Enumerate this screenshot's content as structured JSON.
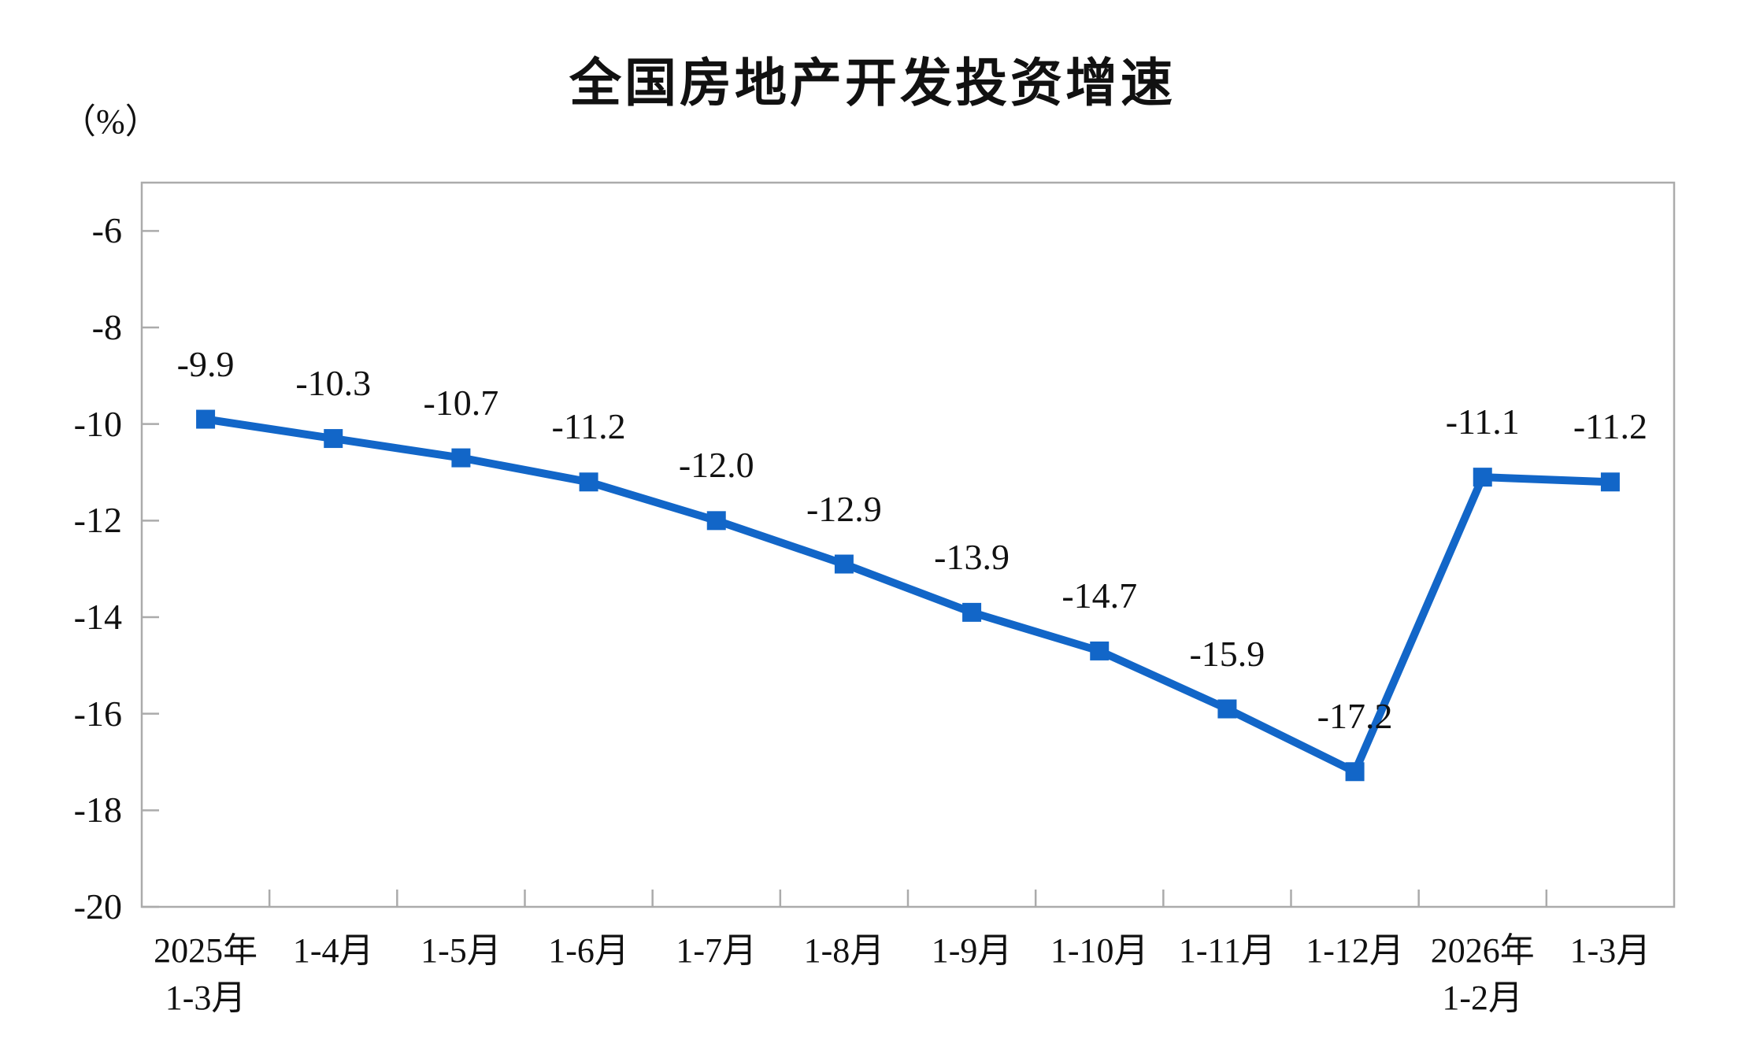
{
  "chart_data": {
    "type": "line",
    "title": "全国房地产开发投资增速",
    "unit_label": "（%）",
    "categories": [
      [
        "2025年",
        "1-3月"
      ],
      [
        "1-4月"
      ],
      [
        "1-5月"
      ],
      [
        "1-6月"
      ],
      [
        "1-7月"
      ],
      [
        "1-8月"
      ],
      [
        "1-9月"
      ],
      [
        "1-10月"
      ],
      [
        "1-11月"
      ],
      [
        "1-12月"
      ],
      [
        "2026年",
        "1-2月"
      ],
      [
        "1-3月"
      ]
    ],
    "values": [
      -9.9,
      -10.3,
      -10.7,
      -11.2,
      -12.0,
      -12.9,
      -13.9,
      -14.7,
      -15.9,
      -17.2,
      -11.1,
      -11.2
    ],
    "data_labels": [
      "-9.9",
      "-10.3",
      "-10.7",
      "-11.2",
      "-12.0",
      "-12.9",
      "-13.9",
      "-14.7",
      "-15.9",
      "-17.2",
      "-11.1",
      "-11.2"
    ],
    "ytick_labels": [
      "-6",
      "-8",
      "-10",
      "-12",
      "-14",
      "-16",
      "-18",
      "-20"
    ],
    "ytick_values": [
      -6,
      -8,
      -10,
      -12,
      -14,
      -16,
      -18,
      -20
    ],
    "ylim": [
      -20,
      -5
    ],
    "grid": false,
    "legend": "none",
    "colors": {
      "line": "#1266C8",
      "marker": "#1266C8",
      "axis": "#ABABAB",
      "text": "#111111"
    }
  }
}
